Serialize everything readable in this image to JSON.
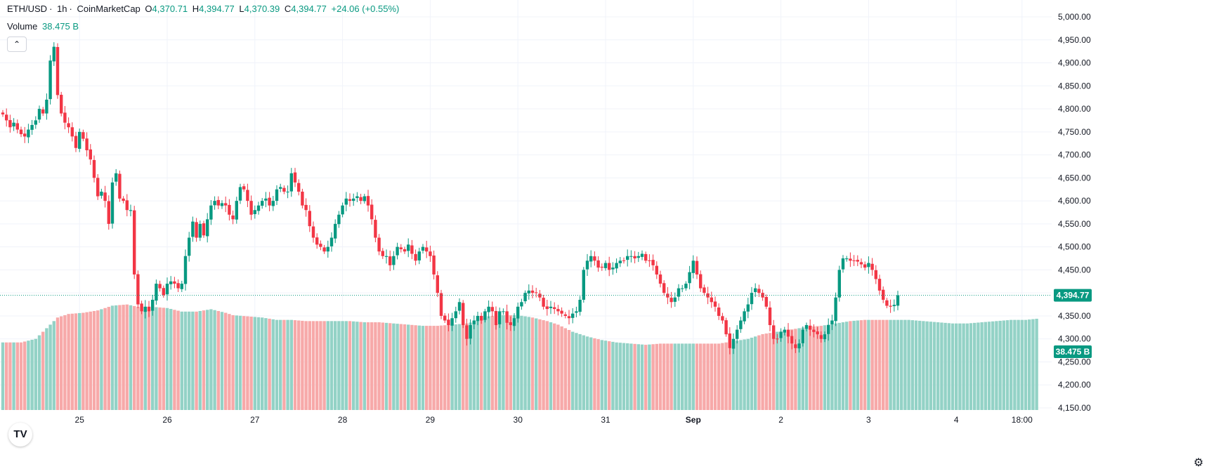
{
  "legend": {
    "symbol": "ETH/USD",
    "interval": "1h",
    "source": "CoinMarketCap",
    "open_label": "O",
    "open": "4,370.71",
    "high_label": "H",
    "high": "4,394.77",
    "low_label": "L",
    "low": "4,370.39",
    "close_label": "C",
    "close": "4,394.77",
    "change": "+24.06 (+0.55%)",
    "volume_label": "Volume",
    "volume": "38.475 B"
  },
  "price_tag": "4,394.77",
  "volume_tag": "38.475 B",
  "collapse_icon": "chevron-up-icon",
  "logo_text": "TV",
  "colors": {
    "up": "#089981",
    "down": "#f23645",
    "up_vol": "#93d2c6",
    "down_vol": "#f7a9a9",
    "grid": "#f0f3fa"
  },
  "chart_data": {
    "type": "candlestick",
    "title": "ETH/USD",
    "interval": "1h",
    "ylim": [
      4150,
      5000
    ],
    "y_ticks": [
      "5,000.00",
      "4,950.00",
      "4,900.00",
      "4,850.00",
      "4,800.00",
      "4,750.00",
      "4,700.00",
      "4,650.00",
      "4,600.00",
      "4,550.00",
      "4,500.00",
      "4,450.00",
      "4,400.00",
      "4,350.00",
      "4,300.00",
      "4,250.00",
      "4,200.00",
      "4,150.00"
    ],
    "x_ticks": [
      {
        "label": "25",
        "bar": 21
      },
      {
        "label": "26",
        "bar": 45
      },
      {
        "label": "27",
        "bar": 69
      },
      {
        "label": "28",
        "bar": 93
      },
      {
        "label": "29",
        "bar": 117
      },
      {
        "label": "30",
        "bar": 141
      },
      {
        "label": "31",
        "bar": 165
      },
      {
        "label": "Sep",
        "bar": 189
      },
      {
        "label": "2",
        "bar": 213
      },
      {
        "label": "3",
        "bar": 237
      },
      {
        "label": "4",
        "bar": 261
      },
      {
        "label": "18:00",
        "bar": 279
      }
    ],
    "x_bar_count": 285,
    "last_price": 4394.77,
    "close_keypoints": [
      [
        0,
        4788
      ],
      [
        1,
        4775
      ],
      [
        2,
        4760
      ],
      [
        3,
        4770
      ],
      [
        4,
        4755
      ],
      [
        5,
        4745
      ],
      [
        6,
        4740
      ],
      [
        7,
        4755
      ],
      [
        8,
        4765
      ],
      [
        9,
        4775
      ],
      [
        10,
        4800
      ],
      [
        11,
        4790
      ],
      [
        12,
        4820
      ],
      [
        13,
        4905
      ],
      [
        14,
        4935
      ],
      [
        15,
        4830
      ],
      [
        16,
        4790
      ],
      [
        17,
        4770
      ],
      [
        18,
        4760
      ],
      [
        19,
        4740
      ],
      [
        20,
        4715
      ],
      [
        21,
        4750
      ],
      [
        22,
        4735
      ],
      [
        23,
        4710
      ],
      [
        24,
        4690
      ],
      [
        25,
        4650
      ],
      [
        26,
        4610
      ],
      [
        27,
        4620
      ],
      [
        28,
        4600
      ],
      [
        29,
        4550
      ],
      [
        30,
        4640
      ],
      [
        31,
        4660
      ],
      [
        32,
        4605
      ],
      [
        33,
        4600
      ],
      [
        34,
        4580
      ],
      [
        35,
        4580
      ],
      [
        36,
        4440
      ],
      [
        37,
        4375
      ],
      [
        38,
        4360
      ],
      [
        39,
        4370
      ],
      [
        40,
        4360
      ],
      [
        41,
        4385
      ],
      [
        42,
        4420
      ],
      [
        43,
        4410
      ],
      [
        44,
        4395
      ],
      [
        45,
        4420
      ],
      [
        46,
        4425
      ],
      [
        47,
        4420
      ],
      [
        48,
        4410
      ],
      [
        49,
        4420
      ],
      [
        50,
        4480
      ],
      [
        51,
        4520
      ],
      [
        52,
        4555
      ],
      [
        53,
        4520
      ],
      [
        54,
        4550
      ],
      [
        55,
        4525
      ],
      [
        56,
        4560
      ],
      [
        57,
        4590
      ],
      [
        58,
        4600
      ],
      [
        59,
        4590
      ],
      [
        60,
        4595
      ],
      [
        61,
        4590
      ],
      [
        62,
        4570
      ],
      [
        63,
        4560
      ],
      [
        64,
        4600
      ],
      [
        65,
        4630
      ],
      [
        66,
        4625
      ],
      [
        67,
        4600
      ],
      [
        68,
        4570
      ],
      [
        69,
        4580
      ],
      [
        70,
        4590
      ],
      [
        71,
        4600
      ],
      [
        72,
        4605
      ],
      [
        73,
        4590
      ],
      [
        74,
        4600
      ],
      [
        75,
        4625
      ],
      [
        76,
        4630
      ],
      [
        77,
        4620
      ],
      [
        78,
        4620
      ],
      [
        79,
        4660
      ],
      [
        80,
        4640
      ],
      [
        81,
        4620
      ],
      [
        82,
        4590
      ],
      [
        83,
        4580
      ],
      [
        84,
        4545
      ],
      [
        85,
        4520
      ],
      [
        86,
        4505
      ],
      [
        87,
        4500
      ],
      [
        88,
        4490
      ],
      [
        89,
        4500
      ],
      [
        90,
        4520
      ],
      [
        91,
        4550
      ],
      [
        92,
        4570
      ],
      [
        93,
        4590
      ],
      [
        94,
        4605
      ],
      [
        95,
        4600
      ],
      [
        96,
        4605
      ],
      [
        97,
        4610
      ],
      [
        98,
        4600
      ],
      [
        99,
        4610
      ],
      [
        100,
        4590
      ],
      [
        101,
        4560
      ],
      [
        102,
        4520
      ],
      [
        103,
        4490
      ],
      [
        104,
        4480
      ],
      [
        105,
        4480
      ],
      [
        106,
        4460
      ],
      [
        107,
        4480
      ],
      [
        108,
        4500
      ],
      [
        109,
        4495
      ],
      [
        110,
        4490
      ],
      [
        111,
        4505
      ],
      [
        112,
        4485
      ],
      [
        113,
        4470
      ],
      [
        114,
        4490
      ],
      [
        115,
        4500
      ],
      [
        116,
        4490
      ],
      [
        117,
        4480
      ],
      [
        118,
        4440
      ],
      [
        119,
        4400
      ],
      [
        120,
        4350
      ],
      [
        121,
        4340
      ],
      [
        122,
        4330
      ],
      [
        123,
        4345
      ],
      [
        124,
        4360
      ],
      [
        125,
        4380
      ],
      [
        126,
        4330
      ],
      [
        127,
        4300
      ],
      [
        128,
        4330
      ],
      [
        129,
        4340
      ],
      [
        130,
        4350
      ],
      [
        131,
        4340
      ],
      [
        132,
        4360
      ],
      [
        133,
        4370
      ],
      [
        134,
        4360
      ],
      [
        135,
        4330
      ],
      [
        136,
        4360
      ],
      [
        137,
        4360
      ],
      [
        138,
        4335
      ],
      [
        139,
        4330
      ],
      [
        140,
        4345
      ],
      [
        141,
        4370
      ],
      [
        142,
        4380
      ],
      [
        143,
        4400
      ],
      [
        144,
        4405
      ],
      [
        145,
        4400
      ],
      [
        146,
        4400
      ],
      [
        147,
        4390
      ],
      [
        148,
        4370
      ],
      [
        149,
        4365
      ],
      [
        150,
        4370
      ],
      [
        151,
        4365
      ],
      [
        152,
        4360
      ],
      [
        153,
        4355
      ],
      [
        154,
        4350
      ],
      [
        155,
        4345
      ],
      [
        156,
        4355
      ],
      [
        157,
        4360
      ],
      [
        158,
        4385
      ],
      [
        159,
        4450
      ],
      [
        160,
        4470
      ],
      [
        161,
        4480
      ],
      [
        162,
        4470
      ],
      [
        163,
        4455
      ],
      [
        164,
        4455
      ],
      [
        165,
        4465
      ],
      [
        166,
        4450
      ],
      [
        167,
        4455
      ],
      [
        168,
        4465
      ],
      [
        169,
        4470
      ],
      [
        170,
        4470
      ],
      [
        171,
        4480
      ],
      [
        172,
        4480
      ],
      [
        173,
        4475
      ],
      [
        174,
        4480
      ],
      [
        175,
        4485
      ],
      [
        176,
        4470
      ],
      [
        177,
        4470
      ],
      [
        178,
        4460
      ],
      [
        179,
        4440
      ],
      [
        180,
        4420
      ],
      [
        181,
        4400
      ],
      [
        182,
        4390
      ],
      [
        183,
        4380
      ],
      [
        184,
        4390
      ],
      [
        185,
        4410
      ],
      [
        186,
        4410
      ],
      [
        187,
        4420
      ],
      [
        188,
        4445
      ],
      [
        189,
        4470
      ],
      [
        190,
        4440
      ],
      [
        191,
        4410
      ],
      [
        192,
        4400
      ],
      [
        193,
        4390
      ],
      [
        194,
        4380
      ],
      [
        195,
        4370
      ],
      [
        196,
        4350
      ],
      [
        197,
        4340
      ],
      [
        198,
        4310
      ],
      [
        199,
        4280
      ],
      [
        200,
        4300
      ],
      [
        201,
        4320
      ],
      [
        202,
        4340
      ],
      [
        203,
        4360
      ],
      [
        204,
        4375
      ],
      [
        205,
        4400
      ],
      [
        206,
        4410
      ],
      [
        207,
        4400
      ],
      [
        208,
        4390
      ],
      [
        209,
        4370
      ],
      [
        210,
        4330
      ],
      [
        211,
        4300
      ],
      [
        212,
        4300
      ],
      [
        213,
        4315
      ],
      [
        214,
        4320
      ],
      [
        215,
        4305
      ],
      [
        216,
        4290
      ],
      [
        217,
        4280
      ],
      [
        218,
        4290
      ],
      [
        219,
        4320
      ],
      [
        220,
        4330
      ],
      [
        221,
        4320
      ],
      [
        222,
        4315
      ],
      [
        223,
        4310
      ],
      [
        224,
        4300
      ],
      [
        225,
        4310
      ],
      [
        226,
        4330
      ],
      [
        227,
        4340
      ],
      [
        228,
        4390
      ],
      [
        229,
        4450
      ],
      [
        230,
        4475
      ],
      [
        231,
        4475
      ],
      [
        232,
        4470
      ],
      [
        233,
        4470
      ],
      [
        234,
        4468
      ],
      [
        235,
        4462
      ],
      [
        236,
        4455
      ],
      [
        237,
        4465
      ],
      [
        238,
        4450
      ],
      [
        239,
        4430
      ],
      [
        240,
        4405
      ],
      [
        241,
        4385
      ],
      [
        242,
        4372
      ],
      [
        243,
        4370
      ],
      [
        244,
        4374
      ],
      [
        245,
        4394.77
      ]
    ],
    "volume_keypoints": [
      [
        0,
        28.5
      ],
      [
        5,
        28.5
      ],
      [
        9,
        30
      ],
      [
        11,
        33
      ],
      [
        13,
        36
      ],
      [
        15,
        39
      ],
      [
        18,
        40.5
      ],
      [
        22,
        41
      ],
      [
        26,
        42
      ],
      [
        30,
        44
      ],
      [
        34,
        44.5
      ],
      [
        37,
        43.5
      ],
      [
        41,
        43.5
      ],
      [
        45,
        43
      ],
      [
        49,
        41.5
      ],
      [
        53,
        41.5
      ],
      [
        57,
        42.5
      ],
      [
        61,
        41
      ],
      [
        63,
        40
      ],
      [
        67,
        39.5
      ],
      [
        71,
        39
      ],
      [
        75,
        38
      ],
      [
        79,
        38
      ],
      [
        83,
        37.5
      ],
      [
        87,
        37.5
      ],
      [
        91,
        37.5
      ],
      [
        95,
        37.5
      ],
      [
        99,
        37
      ],
      [
        103,
        37
      ],
      [
        107,
        36.5
      ],
      [
        111,
        36
      ],
      [
        115,
        35.5
      ],
      [
        119,
        35.5
      ],
      [
        123,
        36
      ],
      [
        127,
        36.5
      ],
      [
        131,
        38
      ],
      [
        133,
        39.5
      ],
      [
        137,
        40
      ],
      [
        141,
        40
      ],
      [
        145,
        39
      ],
      [
        149,
        37.5
      ],
      [
        152,
        36
      ],
      [
        156,
        33
      ],
      [
        160,
        31
      ],
      [
        164,
        29.5
      ],
      [
        168,
        28.5
      ],
      [
        172,
        28
      ],
      [
        176,
        27.5
      ],
      [
        180,
        28
      ],
      [
        184,
        28
      ],
      [
        188,
        28
      ],
      [
        192,
        28
      ],
      [
        196,
        28
      ],
      [
        200,
        29
      ],
      [
        204,
        30
      ],
      [
        208,
        32
      ],
      [
        212,
        33
      ],
      [
        216,
        34
      ],
      [
        220,
        35
      ],
      [
        224,
        35.5
      ],
      [
        228,
        36.5
      ],
      [
        232,
        37.5
      ],
      [
        236,
        38
      ],
      [
        240,
        38
      ],
      [
        244,
        38
      ],
      [
        248,
        38
      ],
      [
        252,
        37.5
      ],
      [
        256,
        37
      ],
      [
        260,
        36.5
      ],
      [
        264,
        36.5
      ],
      [
        268,
        37
      ],
      [
        272,
        37.5
      ],
      [
        276,
        38
      ],
      [
        280,
        38
      ],
      [
        283,
        38.475
      ]
    ],
    "series": [
      {
        "name": "Volume",
        "last": "38.475 B"
      }
    ]
  }
}
